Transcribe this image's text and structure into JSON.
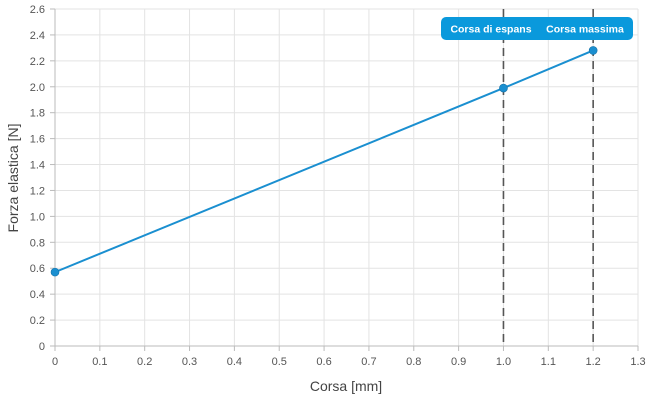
{
  "chart_data": {
    "type": "line",
    "xlabel": "Corsa [mm]",
    "ylabel": "Forza elastica [N]",
    "xlim": [
      0,
      1.3
    ],
    "ylim": [
      0,
      2.6
    ],
    "x_ticks": [
      "0",
      "0.1",
      "0.2",
      "0.3",
      "0.4",
      "0.5",
      "0.6",
      "0.7",
      "0.8",
      "0.9",
      "1.0",
      "1.1",
      "1.2",
      "1.3"
    ],
    "y_ticks": [
      "0",
      "0.2",
      "0.4",
      "0.6",
      "0.8",
      "1.0",
      "1.2",
      "1.4",
      "1.6",
      "1.8",
      "2.0",
      "2.2",
      "2.4",
      "2.6"
    ],
    "grid": true,
    "series": [
      {
        "color": "#1a8fd0",
        "points": [
          {
            "x": 0,
            "y": 0.57
          },
          {
            "x": 1.0,
            "y": 1.99
          },
          {
            "x": 1.2,
            "y": 2.28
          }
        ]
      }
    ],
    "annotations": [
      {
        "x": 1.0,
        "label": "Corsa di espans",
        "style": "dashed-vertical"
      },
      {
        "x": 1.2,
        "label": "Corsa massima",
        "style": "dashed-vertical"
      }
    ],
    "annotation_color": "#0a99dc"
  }
}
